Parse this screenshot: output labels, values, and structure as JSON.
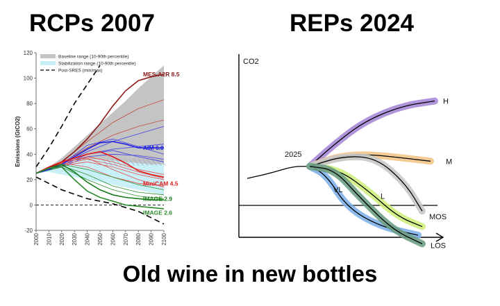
{
  "headings": {
    "left": "RCPs 2007",
    "right": "REPs 2024",
    "bottom": "Old wine in new bottles"
  },
  "chart_data": [
    {
      "type": "line",
      "title": "RCPs 2007",
      "ylabel": "Emissions (GtCO2)",
      "xlabel": "",
      "xlim": [
        2000,
        2100
      ],
      "ylim": [
        -20,
        120
      ],
      "xticks": [
        "2000",
        "2010",
        "2020",
        "2030",
        "2040",
        "2050",
        "2060",
        "2070",
        "2080",
        "2090",
        "2100"
      ],
      "yticks": [
        "-20",
        "0",
        "20",
        "40",
        "60",
        "80",
        "100",
        "120"
      ],
      "legend": [
        "Baseline range (10-90th percentile)",
        "Stabilization range (10-90th percentile)",
        "Post-SRES (min/max)"
      ],
      "legend_position": "top-left",
      "bands": [
        {
          "name": "Baseline range (10-90th percentile)",
          "color": "#c4c4c4",
          "x": [
            2000,
            2010,
            2020,
            2030,
            2040,
            2050,
            2060,
            2070,
            2080,
            2090,
            2100
          ],
          "lower": [
            25,
            28,
            30,
            31,
            32,
            33,
            33,
            32,
            31,
            30,
            30
          ],
          "upper": [
            25,
            30,
            37,
            46,
            55,
            64,
            73,
            82,
            92,
            101,
            110
          ]
        },
        {
          "name": "Stabilization range (10-90th percentile)",
          "color": "#c8f0f6",
          "x": [
            2000,
            2010,
            2020,
            2030,
            2040,
            2050,
            2060,
            2070,
            2080,
            2090,
            2100
          ],
          "lower": [
            25,
            26,
            24,
            22,
            20,
            18,
            16,
            14,
            12,
            10,
            8
          ],
          "upper": [
            25,
            29,
            32,
            35,
            36,
            36,
            35,
            34,
            33,
            32,
            32
          ]
        }
      ],
      "series": [
        {
          "name": "MES-A2R 8.5",
          "color": "#8b1a1a",
          "x": [
            2000,
            2010,
            2020,
            2030,
            2040,
            2050,
            2060,
            2070,
            2080,
            2090,
            2100
          ],
          "y": [
            25,
            29,
            34,
            42,
            52,
            64,
            78,
            90,
            98,
            101,
            103
          ]
        },
        {
          "name": "AIM 6.0",
          "color": "#1f1fe0",
          "x": [
            2000,
            2010,
            2020,
            2030,
            2040,
            2050,
            2060,
            2070,
            2080,
            2090,
            2100
          ],
          "y": [
            25,
            28,
            32,
            38,
            44,
            49,
            50,
            48,
            45,
            45,
            45
          ]
        },
        {
          "name": "MiniCAM 4.5",
          "color": "#e01c1c",
          "x": [
            2000,
            2010,
            2020,
            2030,
            2040,
            2050,
            2060,
            2070,
            2080,
            2090,
            2100
          ],
          "y": [
            25,
            30,
            34,
            37,
            40,
            42,
            38,
            33,
            27,
            24,
            22
          ]
        },
        {
          "name": "IMAGE 2.9",
          "color": "#1a7a1a",
          "x": [
            2000,
            2010,
            2020,
            2030,
            2040,
            2050,
            2060,
            2070,
            2080,
            2090,
            2100
          ],
          "y": [
            25,
            29,
            32,
            26,
            18,
            12,
            8,
            6,
            5,
            4,
            4
          ]
        },
        {
          "name": "IMAGE 2.6",
          "color": "#2a8a2a",
          "x": [
            2000,
            2010,
            2020,
            2030,
            2040,
            2050,
            2060,
            2070,
            2080,
            2090,
            2100
          ],
          "y": [
            25,
            29,
            30,
            20,
            11,
            6,
            3,
            0,
            -1,
            -2,
            -3
          ]
        }
      ],
      "thin_lines": [
        {
          "color": "#c04a3a",
          "x": [
            2000,
            2020,
            2040,
            2060,
            2080,
            2100
          ],
          "y": [
            25,
            34,
            50,
            65,
            76,
            83
          ]
        },
        {
          "color": "#c04a3a",
          "x": [
            2000,
            2020,
            2040,
            2060,
            2080,
            2100
          ],
          "y": [
            25,
            33,
            45,
            55,
            62,
            67
          ]
        },
        {
          "color": "#3d3de8",
          "x": [
            2000,
            2020,
            2040,
            2060,
            2080,
            2100
          ],
          "y": [
            25,
            32,
            42,
            50,
            56,
            62
          ]
        },
        {
          "color": "#3d3de8",
          "x": [
            2000,
            2020,
            2040,
            2060,
            2080,
            2100
          ],
          "y": [
            25,
            31,
            40,
            44,
            46,
            48
          ]
        },
        {
          "color": "#3d3de8",
          "x": [
            2000,
            2020,
            2040,
            2060,
            2080,
            2100
          ],
          "y": [
            25,
            32,
            47,
            52,
            46,
            40
          ]
        },
        {
          "color": "#3d3de8",
          "x": [
            2000,
            2020,
            2040,
            2060,
            2080,
            2100
          ],
          "y": [
            25,
            30,
            38,
            40,
            39,
            36
          ]
        },
        {
          "color": "#3d3de8",
          "x": [
            2000,
            2020,
            2040,
            2060,
            2080,
            2100
          ],
          "y": [
            25,
            31,
            40,
            43,
            38,
            34
          ]
        },
        {
          "color": "#e84a4a",
          "x": [
            2000,
            2020,
            2040,
            2060,
            2080,
            2100
          ],
          "y": [
            25,
            33,
            38,
            34,
            28,
            24
          ]
        },
        {
          "color": "#e84a4a",
          "x": [
            2000,
            2020,
            2040,
            2060,
            2080,
            2100
          ],
          "y": [
            25,
            32,
            36,
            32,
            26,
            21
          ]
        },
        {
          "color": "#e84a4a",
          "x": [
            2000,
            2020,
            2040,
            2060,
            2080,
            2100
          ],
          "y": [
            25,
            31,
            34,
            30,
            24,
            20
          ]
        },
        {
          "color": "#e84a4a",
          "x": [
            2000,
            2020,
            2040,
            2060,
            2080,
            2100
          ],
          "y": [
            25,
            34,
            37,
            28,
            20,
            14
          ]
        },
        {
          "color": "#e84a4a",
          "x": [
            2000,
            2020,
            2040,
            2060,
            2080,
            2100
          ],
          "y": [
            25,
            33,
            30,
            22,
            17,
            15
          ]
        },
        {
          "color": "#2e922e",
          "x": [
            2000,
            2020,
            2040,
            2060,
            2080,
            2100
          ],
          "y": [
            25,
            31,
            24,
            15,
            10,
            8
          ]
        },
        {
          "color": "#2e922e",
          "x": [
            2000,
            2020,
            2040,
            2060,
            2080,
            2100
          ],
          "y": [
            25,
            30,
            20,
            12,
            7,
            5
          ]
        },
        {
          "color": "#2e922e",
          "x": [
            2000,
            2020,
            2040,
            2060,
            2080,
            2100
          ],
          "y": [
            25,
            32,
            28,
            22,
            16,
            12
          ]
        }
      ],
      "post_sres": [
        {
          "name": "Post-SRES max",
          "x": [
            2000,
            2010,
            2020,
            2030,
            2040,
            2050
          ],
          "y": [
            30,
            45,
            62,
            80,
            95,
            110
          ]
        },
        {
          "name": "Post-SRES min",
          "x": [
            2000,
            2020,
            2040,
            2060,
            2080,
            2100
          ],
          "y": [
            22,
            12,
            5,
            1,
            -5,
            -15
          ]
        }
      ],
      "zero_line": 0
    },
    {
      "type": "line",
      "title": "REPs 2024",
      "ylabel": "CO2",
      "annotation": "2025",
      "series": [
        {
          "name": "H",
          "color": "#a98ad8",
          "points": [
            [
              0.34,
              0.62
            ],
            [
              0.45,
              0.5
            ],
            [
              0.6,
              0.36
            ],
            [
              0.78,
              0.27
            ],
            [
              0.94,
              0.24
            ]
          ]
        },
        {
          "name": "M",
          "color": "#f3c588",
          "points": [
            [
              0.34,
              0.62
            ],
            [
              0.48,
              0.56
            ],
            [
              0.62,
              0.55
            ],
            [
              0.78,
              0.57
            ],
            [
              0.92,
              0.59
            ]
          ]
        },
        {
          "name": "L",
          "color": "#cfee7d",
          "points": [
            [
              0.34,
              0.62
            ],
            [
              0.48,
              0.64
            ],
            [
              0.62,
              0.76
            ],
            [
              0.76,
              0.91
            ],
            [
              0.88,
              0.97
            ]
          ]
        },
        {
          "name": "VL",
          "color": "#7fb2ea",
          "points": [
            [
              0.34,
              0.62
            ],
            [
              0.42,
              0.67
            ],
            [
              0.52,
              0.86
            ],
            [
              0.68,
              0.97
            ],
            [
              0.86,
              1.02
            ]
          ]
        },
        {
          "name": "MOS",
          "color": "#c9c9c9",
          "points": [
            [
              0.34,
              0.62
            ],
            [
              0.5,
              0.56
            ],
            [
              0.66,
              0.57
            ],
            [
              0.8,
              0.72
            ],
            [
              0.88,
              0.88
            ]
          ]
        },
        {
          "name": "LOS",
          "color": "#6e9e84",
          "points": [
            [
              0.34,
              0.62
            ],
            [
              0.46,
              0.64
            ],
            [
              0.58,
              0.8
            ],
            [
              0.74,
              0.99
            ],
            [
              0.88,
              1.07
            ]
          ]
        }
      ],
      "history": [
        [
          0.04,
          0.69
        ],
        [
          0.15,
          0.66
        ],
        [
          0.26,
          0.62
        ],
        [
          0.34,
          0.62
        ]
      ]
    }
  ]
}
